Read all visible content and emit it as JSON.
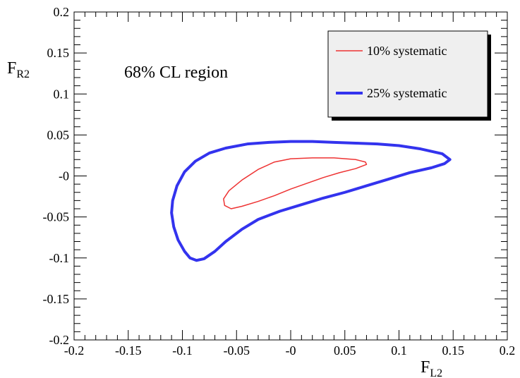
{
  "chart_data": {
    "type": "line",
    "xlabel_main": "F",
    "xlabel_sub": "L2",
    "ylabel_main": "F",
    "ylabel_sub": "R2",
    "xlim": [
      -0.2,
      0.2
    ],
    "ylim": [
      -0.2,
      0.2
    ],
    "xticks": [
      -0.2,
      -0.15,
      -0.1,
      -0.05,
      0,
      0.05,
      0.1,
      0.15,
      0.2
    ],
    "xtick_labels": [
      "-0.2",
      "-0.15",
      "-0.1",
      "-0.05",
      "-0",
      "0.05",
      "0.1",
      "0.15",
      "0.2"
    ],
    "yticks": [
      -0.2,
      -0.15,
      -0.1,
      -0.05,
      0,
      0.05,
      0.1,
      0.15,
      0.2
    ],
    "ytick_labels": [
      "-0.2",
      "-0.15",
      "-0.1",
      "-0.05",
      "-0",
      "0.05",
      "0.1",
      "0.15",
      "0.2"
    ],
    "annotation": "68% CL region",
    "legend_position": "top-right",
    "grid": false,
    "series": [
      {
        "name": "10% systematic",
        "color": "#ee3333",
        "closed": true,
        "points": [
          [
            -0.055,
            -0.04
          ],
          [
            -0.045,
            -0.037
          ],
          [
            -0.03,
            -0.031
          ],
          [
            -0.015,
            -0.024
          ],
          [
            0.0,
            -0.016
          ],
          [
            0.015,
            -0.009
          ],
          [
            0.03,
            -0.002
          ],
          [
            0.045,
            0.004
          ],
          [
            0.06,
            0.009
          ],
          [
            0.07,
            0.014
          ],
          [
            0.069,
            0.017
          ],
          [
            0.06,
            0.02
          ],
          [
            0.04,
            0.022
          ],
          [
            0.02,
            0.022
          ],
          [
            0.0,
            0.021
          ],
          [
            -0.015,
            0.017
          ],
          [
            -0.03,
            0.008
          ],
          [
            -0.045,
            -0.005
          ],
          [
            -0.057,
            -0.018
          ],
          [
            -0.062,
            -0.028
          ],
          [
            -0.061,
            -0.036
          ],
          [
            -0.055,
            -0.04
          ]
        ]
      },
      {
        "name": "25% systematic",
        "color": "#3333ee",
        "closed": true,
        "points": [
          [
            -0.087,
            -0.103
          ],
          [
            -0.08,
            -0.101
          ],
          [
            -0.07,
            -0.092
          ],
          [
            -0.06,
            -0.08
          ],
          [
            -0.045,
            -0.065
          ],
          [
            -0.03,
            -0.053
          ],
          [
            -0.01,
            -0.043
          ],
          [
            0.01,
            -0.035
          ],
          [
            0.03,
            -0.027
          ],
          [
            0.05,
            -0.02
          ],
          [
            0.07,
            -0.012
          ],
          [
            0.09,
            -0.004
          ],
          [
            0.11,
            0.004
          ],
          [
            0.13,
            0.01
          ],
          [
            0.142,
            0.015
          ],
          [
            0.147,
            0.02
          ],
          [
            0.14,
            0.027
          ],
          [
            0.12,
            0.033
          ],
          [
            0.1,
            0.037
          ],
          [
            0.08,
            0.039
          ],
          [
            0.06,
            0.04
          ],
          [
            0.04,
            0.041
          ],
          [
            0.02,
            0.042
          ],
          [
            0.0,
            0.042
          ],
          [
            -0.02,
            0.041
          ],
          [
            -0.04,
            0.039
          ],
          [
            -0.06,
            0.034
          ],
          [
            -0.075,
            0.028
          ],
          [
            -0.088,
            0.018
          ],
          [
            -0.098,
            0.005
          ],
          [
            -0.105,
            -0.012
          ],
          [
            -0.109,
            -0.03
          ],
          [
            -0.11,
            -0.045
          ],
          [
            -0.108,
            -0.062
          ],
          [
            -0.104,
            -0.078
          ],
          [
            -0.098,
            -0.092
          ],
          [
            -0.093,
            -0.1
          ],
          [
            -0.087,
            -0.103
          ]
        ]
      }
    ]
  }
}
